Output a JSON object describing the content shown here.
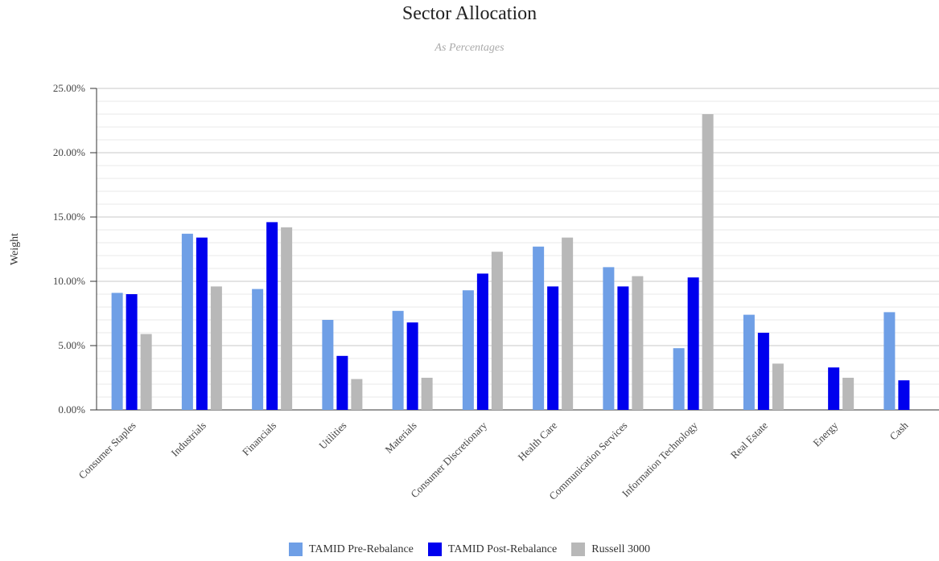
{
  "chart_data": {
    "type": "bar",
    "title": "Sector Allocation",
    "subtitle": "As Percentages",
    "ylabel": "Weight",
    "xlabel": "",
    "ylim": [
      0,
      25
    ],
    "yticks": [
      "0.00%",
      "5.00%",
      "10.00%",
      "15.00%",
      "20.00%",
      "25.00%"
    ],
    "grid": true,
    "legend_position": "bottom",
    "categories": [
      "Consumer Staples",
      "Industrials",
      "Financials",
      "Utilities",
      "Materials",
      "Consumer Discretionary",
      "Health Care",
      "Communication Services",
      "Information Technology",
      "Real Estate",
      "Energy",
      "Cash"
    ],
    "series": [
      {
        "name": "TAMID Pre-Rebalance",
        "color": "#6f9fe6",
        "values": [
          9.1,
          13.7,
          9.4,
          7.0,
          7.7,
          9.3,
          12.7,
          11.1,
          4.8,
          7.4,
          0,
          7.6
        ]
      },
      {
        "name": "TAMID Post-Rebalance",
        "color": "#0000ee",
        "values": [
          9.0,
          13.4,
          14.6,
          4.2,
          6.8,
          10.6,
          9.6,
          9.6,
          10.3,
          6.0,
          3.3,
          2.3
        ]
      },
      {
        "name": "Russell 3000",
        "color": "#b8b8b8",
        "values": [
          5.9,
          9.6,
          14.2,
          2.4,
          2.5,
          12.3,
          13.4,
          10.4,
          23.0,
          3.6,
          2.5,
          0
        ]
      }
    ]
  }
}
